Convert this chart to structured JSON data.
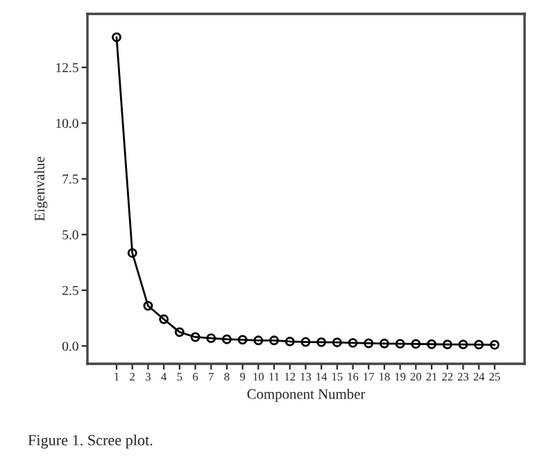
{
  "chart_data": {
    "type": "line",
    "xlabel": "Component Number",
    "ylabel": "Eigenvalue",
    "x": [
      1,
      2,
      3,
      4,
      5,
      6,
      7,
      8,
      9,
      10,
      11,
      12,
      13,
      14,
      15,
      16,
      17,
      18,
      19,
      20,
      21,
      22,
      23,
      24,
      25
    ],
    "series": [
      {
        "color": "#000000",
        "values": [
          13.85,
          4.17,
          1.8,
          1.2,
          0.62,
          0.4,
          0.35,
          0.3,
          0.28,
          0.25,
          0.25,
          0.2,
          0.18,
          0.17,
          0.16,
          0.14,
          0.12,
          0.11,
          0.1,
          0.09,
          0.08,
          0.07,
          0.07,
          0.06,
          0.05
        ]
      }
    ],
    "xlim": [
      -0.85,
      26.9
    ],
    "ylim": [
      -0.8,
      14.9
    ],
    "xticks": [
      1,
      2,
      3,
      4,
      5,
      6,
      7,
      8,
      9,
      10,
      11,
      12,
      13,
      14,
      15,
      16,
      17,
      18,
      19,
      20,
      21,
      22,
      23,
      24,
      25
    ],
    "yticks": [
      {
        "value": 0,
        "label": "0.0"
      },
      {
        "value": 2.5,
        "label": "2.5"
      },
      {
        "value": 5,
        "label": "5.0"
      },
      {
        "value": 7.5,
        "label": "7.5"
      },
      {
        "value": 10,
        "label": "10.0"
      },
      {
        "value": 12.5,
        "label": "12.5"
      }
    ],
    "marker": "circle",
    "line_style": "solid",
    "grid": false,
    "legend": false,
    "annotations": [
      "Figure 1. Scree plot."
    ]
  }
}
